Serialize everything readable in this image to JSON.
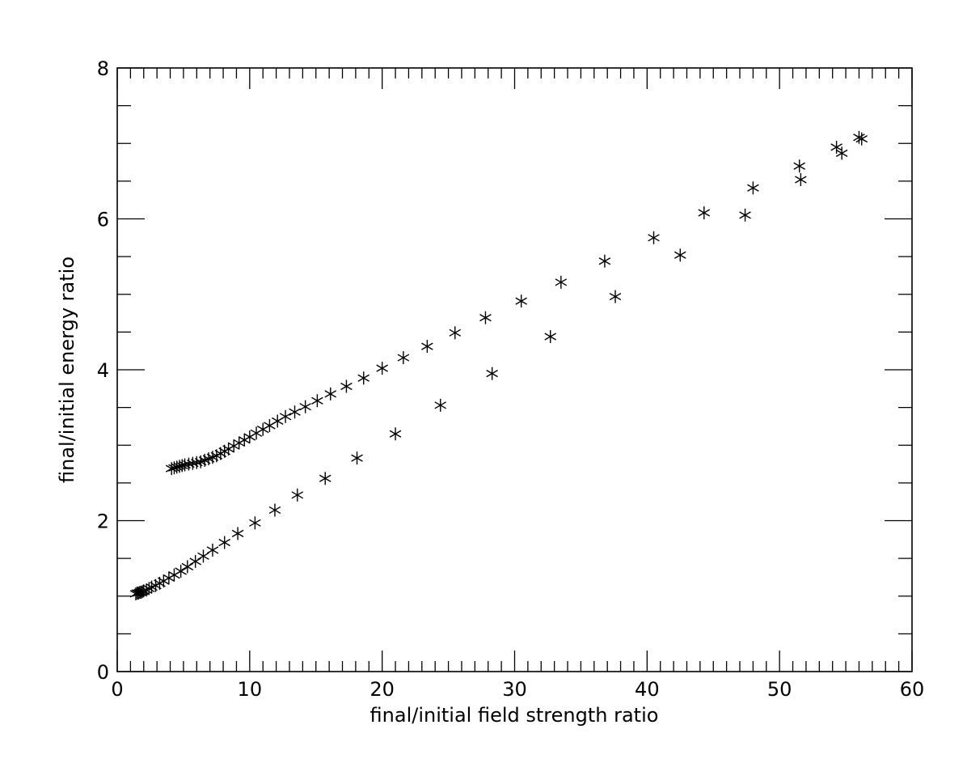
{
  "chart_data": {
    "type": "scatter",
    "title": "",
    "xlabel": "final/initial field strength ratio",
    "ylabel": "final/initial energy ratio",
    "xlim": [
      0,
      60
    ],
    "ylim": [
      0,
      8
    ],
    "x_ticks": [
      0,
      10,
      20,
      30,
      40,
      50,
      60
    ],
    "y_ticks": [
      0,
      2,
      4,
      6,
      8
    ],
    "x_minor_step": 1,
    "y_minor_step": 0.5,
    "grid": false,
    "legend": "none",
    "marker": "asterisk",
    "color": "#000000",
    "series": [
      {
        "points": [
          [
            4.1,
            2.69
          ],
          [
            4.3,
            2.7
          ],
          [
            4.5,
            2.71
          ],
          [
            4.7,
            2.72
          ],
          [
            4.9,
            2.73
          ],
          [
            5.1,
            2.74
          ],
          [
            5.4,
            2.75
          ],
          [
            5.7,
            2.76
          ],
          [
            6.0,
            2.77
          ],
          [
            6.3,
            2.78
          ],
          [
            6.6,
            2.8
          ],
          [
            6.9,
            2.82
          ],
          [
            7.2,
            2.84
          ],
          [
            7.5,
            2.86
          ],
          [
            7.8,
            2.89
          ],
          [
            8.1,
            2.92
          ],
          [
            8.4,
            2.95
          ],
          [
            8.8,
            2.99
          ],
          [
            9.2,
            3.03
          ],
          [
            9.6,
            3.07
          ],
          [
            10.0,
            3.11
          ],
          [
            10.5,
            3.16
          ],
          [
            11.0,
            3.21
          ],
          [
            11.5,
            3.26
          ],
          [
            12.1,
            3.32
          ],
          [
            12.7,
            3.38
          ],
          [
            13.4,
            3.44
          ],
          [
            14.2,
            3.51
          ],
          [
            15.1,
            3.59
          ],
          [
            16.1,
            3.68
          ],
          [
            17.3,
            3.78
          ],
          [
            18.6,
            3.89
          ],
          [
            20.0,
            4.02
          ],
          [
            21.6,
            4.16
          ],
          [
            23.4,
            4.31
          ],
          [
            25.5,
            4.49
          ],
          [
            27.8,
            4.69
          ],
          [
            30.5,
            4.91
          ],
          [
            33.5,
            5.16
          ],
          [
            36.8,
            5.44
          ],
          [
            40.5,
            5.75
          ],
          [
            44.3,
            6.08
          ],
          [
            48.0,
            6.41
          ],
          [
            51.5,
            6.7
          ],
          [
            54.3,
            6.95
          ],
          [
            56.2,
            7.06
          ],
          [
            56.0,
            7.08
          ],
          [
            54.7,
            6.87
          ],
          [
            51.6,
            6.52
          ],
          [
            47.4,
            6.05
          ],
          [
            42.5,
            5.52
          ],
          [
            37.6,
            4.97
          ],
          [
            32.7,
            4.44
          ],
          [
            28.3,
            3.95
          ],
          [
            24.4,
            3.53
          ],
          [
            21.0,
            3.15
          ],
          [
            18.1,
            2.83
          ],
          [
            15.7,
            2.56
          ],
          [
            13.6,
            2.34
          ],
          [
            11.9,
            2.14
          ],
          [
            10.4,
            1.97
          ],
          [
            9.1,
            1.83
          ],
          [
            8.1,
            1.71
          ],
          [
            7.2,
            1.61
          ],
          [
            6.5,
            1.53
          ],
          [
            5.9,
            1.46
          ],
          [
            5.3,
            1.39
          ],
          [
            4.8,
            1.33
          ],
          [
            4.3,
            1.28
          ],
          [
            3.9,
            1.24
          ],
          [
            3.5,
            1.2
          ],
          [
            3.2,
            1.17
          ],
          [
            2.9,
            1.14
          ],
          [
            2.6,
            1.12
          ],
          [
            2.4,
            1.1
          ],
          [
            2.2,
            1.08
          ],
          [
            2.0,
            1.07
          ],
          [
            1.9,
            1.06
          ],
          [
            1.8,
            1.05
          ],
          [
            1.7,
            1.05
          ],
          [
            1.6,
            1.04
          ],
          [
            1.5,
            1.04
          ],
          [
            1.4,
            1.03
          ]
        ]
      }
    ]
  }
}
